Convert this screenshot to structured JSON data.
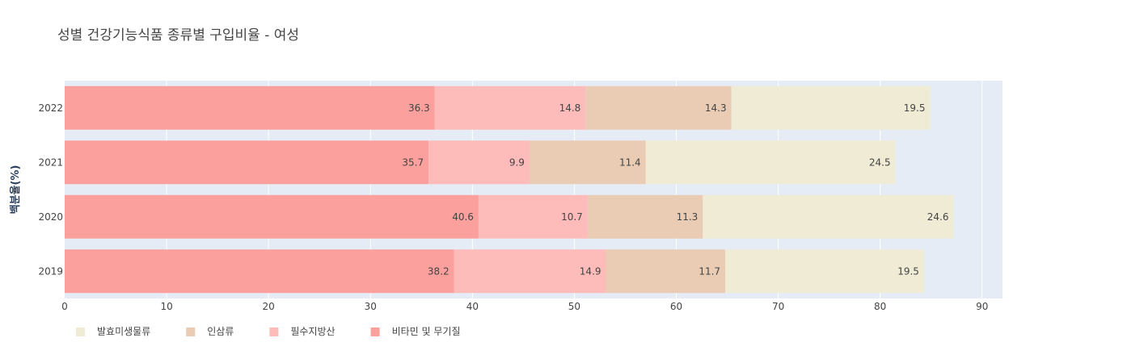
{
  "chart_data": {
    "type": "bar",
    "orientation": "horizontal",
    "stacked": true,
    "title": "성별 건강기능식품 종류별 구입비율 - 여성",
    "xlabel": "",
    "ylabel": "백분율(%)",
    "xlim": [
      0,
      92
    ],
    "x_ticks": [
      0,
      10,
      20,
      30,
      40,
      50,
      60,
      70,
      80,
      90
    ],
    "grid": true,
    "legend_placement": "bottom-left",
    "categories": [
      "2019",
      "2020",
      "2021",
      "2022"
    ],
    "series": [
      {
        "name": "비타민 및 무기질",
        "color": "#fca09e",
        "values": [
          38.2,
          40.6,
          35.7,
          36.3
        ]
      },
      {
        "name": "필수지방산",
        "color": "#fdbcba",
        "values": [
          14.9,
          10.7,
          9.9,
          14.8
        ]
      },
      {
        "name": "인삼류",
        "color": "#e9ccb3",
        "values": [
          11.7,
          11.3,
          11.4,
          14.3
        ]
      },
      {
        "name": "발효미생물류",
        "color": "#efebd5",
        "values": [
          19.5,
          24.6,
          24.5,
          19.5
        ]
      }
    ],
    "legend_order": [
      "발효미생물류",
      "인삼류",
      "필수지방산",
      "비타민 및 무기질"
    ],
    "plot_bg": "#e5ecf6"
  }
}
